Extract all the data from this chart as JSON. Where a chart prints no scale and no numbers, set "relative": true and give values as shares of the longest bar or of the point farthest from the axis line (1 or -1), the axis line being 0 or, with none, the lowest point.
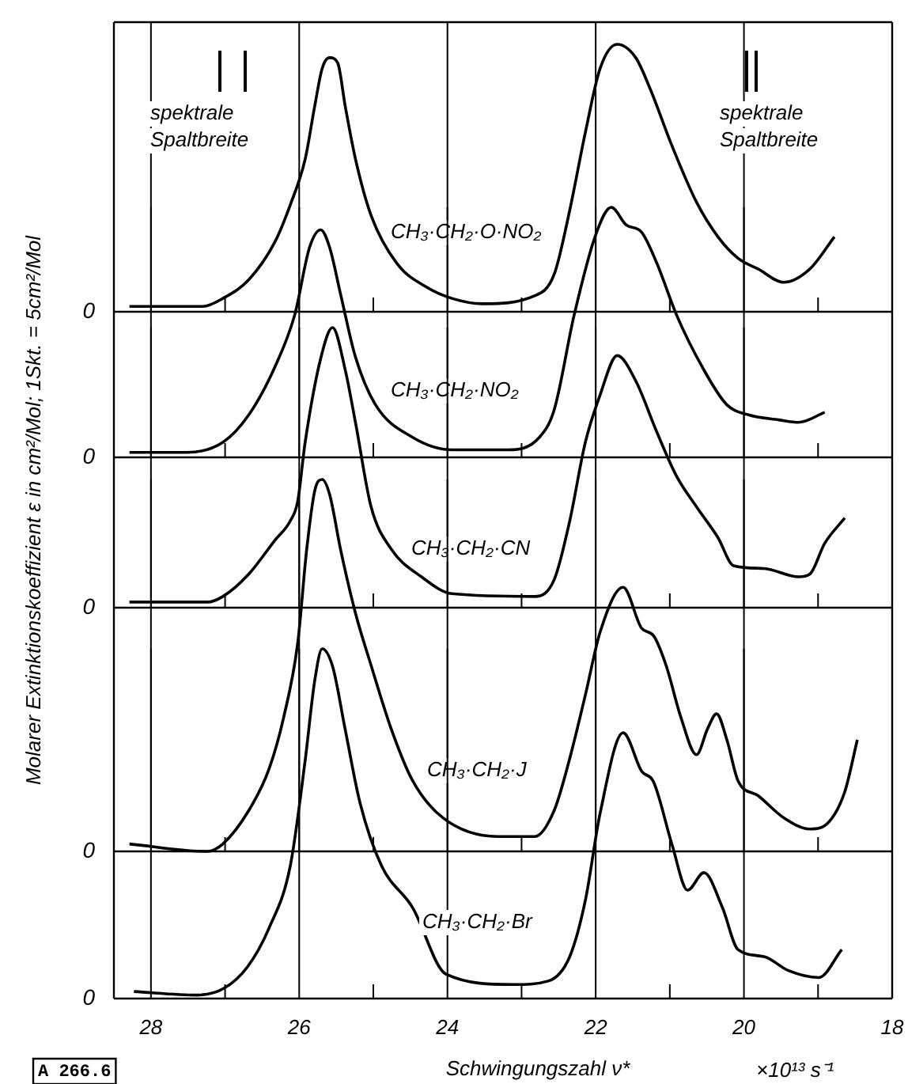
{
  "chart_data": [
    {
      "type": "line",
      "relative": true,
      "ylabel": "Molarer Extinktionskoeffizient ε in cm²/Mol; 1Skt. = 5cm²/Mol",
      "xlim": [
        28.5,
        18
      ],
      "xticks": [
        28,
        {
          "value": 27,
          "label": null
        },
        26,
        {
          "value": 25,
          "label": null
        },
        24,
        {
          "value": 23,
          "label": null
        },
        22,
        {
          "value": 21,
          "label": null
        },
        20,
        {
          "value": 19,
          "label": null
        },
        18
      ],
      "grid": "x",
      "tick_labels": false,
      "annotations": [
        "0",
        "spektrale Spaltbreite",
        "spektrale Spaltbreite"
      ],
      "x": [
        28.29,
        27.3,
        27.03,
        26.68,
        26.33,
        26.12,
        25.92,
        25.79,
        25.69,
        25.59,
        25.48,
        25.38,
        25.24,
        25.03,
        24.68,
        24.27,
        23.94,
        23.53,
        22.82,
        22.56,
        22.35,
        22.14,
        21.94,
        21.71,
        21.46,
        21.26,
        20.97,
        20.64,
        20.35,
        20.08,
        19.81,
        19.46,
        19.11,
        18.78
      ],
      "series": [
        {
          "name": "CH₃·CH₂·O·NO₂",
          "color": "#000000",
          "values": [
            0.02,
            0.02,
            0.05,
            0.12,
            0.26,
            0.4,
            0.57,
            0.77,
            0.91,
            0.95,
            0.93,
            0.77,
            0.57,
            0.36,
            0.18,
            0.09,
            0.05,
            0.03,
            0.06,
            0.14,
            0.38,
            0.67,
            0.91,
            1,
            0.95,
            0.83,
            0.62,
            0.41,
            0.28,
            0.2,
            0.16,
            0.11,
            0.16,
            0.28
          ]
        }
      ]
    },
    {
      "type": "line",
      "relative": true,
      "xlim": [
        28.5,
        18
      ],
      "xticks": [
        28,
        {
          "value": 27,
          "label": null
        },
        26,
        {
          "value": 25,
          "label": null
        },
        24,
        {
          "value": 23,
          "label": null
        },
        22,
        {
          "value": 21,
          "label": null
        },
        20,
        {
          "value": 19,
          "label": null
        },
        18
      ],
      "grid": "x",
      "tick_labels": false,
      "annotations": [
        "0"
      ],
      "x": [
        28.29,
        27.51,
        27.03,
        26.68,
        26.33,
        26.06,
        25.86,
        25.71,
        25.59,
        25.44,
        25.24,
        24.97,
        24.47,
        23.94,
        23.18,
        22.76,
        22.56,
        22.29,
        22.0,
        21.79,
        21.59,
        21.38,
        21.18,
        20.91,
        20.56,
        20.23,
        19.94,
        19.53,
        19.26,
        18.91
      ],
      "series": [
        {
          "name": "CH₃·CH₂·NO₂",
          "color": "#000000",
          "values": [
            0.02,
            0.02,
            0.06,
            0.17,
            0.36,
            0.57,
            0.84,
            0.91,
            0.84,
            0.65,
            0.4,
            0.21,
            0.08,
            0.03,
            0.03,
            0.08,
            0.19,
            0.57,
            0.89,
            1,
            0.93,
            0.9,
            0.78,
            0.57,
            0.36,
            0.21,
            0.17,
            0.15,
            0.14,
            0.18
          ]
        }
      ]
    },
    {
      "type": "line",
      "relative": true,
      "xlim": [
        28.5,
        18
      ],
      "xticks": [
        28,
        {
          "value": 27,
          "label": null
        },
        26,
        {
          "value": 25,
          "label": null
        },
        24,
        {
          "value": 23,
          "label": null
        },
        22,
        {
          "value": 21,
          "label": null
        },
        20,
        {
          "value": 19,
          "label": null
        },
        18
      ],
      "grid": "x",
      "tick_labels": false,
      "annotations": [
        "0"
      ],
      "x": [
        28.29,
        27.24,
        27.03,
        26.68,
        26.33,
        26.12,
        26.02,
        25.92,
        25.71,
        25.55,
        25.38,
        25.24,
        25.03,
        24.76,
        24.35,
        23.94,
        22.82,
        22.56,
        22.35,
        22.14,
        21.94,
        21.71,
        21.46,
        21.18,
        20.91,
        20.64,
        20.35,
        20.14,
        19.73,
        19.26,
        19.11,
        18.91,
        18.64
      ],
      "series": [
        {
          "name": "CH₃·CH₂·CN",
          "color": "#000000",
          "values": [
            0.02,
            0.02,
            0.04,
            0.12,
            0.24,
            0.31,
            0.38,
            0.59,
            0.89,
            1,
            0.85,
            0.66,
            0.36,
            0.21,
            0.11,
            0.05,
            0.04,
            0.1,
            0.31,
            0.59,
            0.76,
            0.9,
            0.81,
            0.63,
            0.47,
            0.36,
            0.25,
            0.15,
            0.14,
            0.11,
            0.12,
            0.23,
            0.32
          ]
        }
      ]
    },
    {
      "type": "line",
      "relative": true,
      "xlim": [
        28.5,
        18
      ],
      "xticks": [
        28,
        {
          "value": 27,
          "label": null
        },
        26,
        {
          "value": 25,
          "label": null
        },
        24,
        {
          "value": 23,
          "label": null
        },
        22,
        {
          "value": 21,
          "label": null
        },
        20,
        {
          "value": 19,
          "label": null
        },
        18
      ],
      "grid": "x",
      "tick_labels": false,
      "annotations": [
        "0"
      ],
      "x": [
        28.29,
        27.24,
        27.03,
        26.68,
        26.41,
        26.21,
        26.02,
        25.9,
        25.79,
        25.69,
        25.59,
        25.44,
        25.24,
        25.03,
        24.76,
        24.47,
        24.06,
        23.32,
        22.82,
        22.56,
        22.35,
        22.14,
        21.94,
        21.63,
        21.38,
        21.22,
        21.05,
        20.85,
        20.64,
        20.49,
        20.37,
        20.23,
        20.08,
        19.81,
        19.46,
        19.11,
        18.85,
        18.64,
        18.47
      ],
      "series": [
        {
          "name": "CH₃·CH₂·J",
          "color": "#000000",
          "values": [
            0.02,
            0,
            0.02,
            0.11,
            0.22,
            0.36,
            0.56,
            0.81,
            0.97,
            1,
            0.96,
            0.81,
            0.64,
            0.5,
            0.33,
            0.19,
            0.09,
            0.04,
            0.04,
            0.11,
            0.25,
            0.42,
            0.59,
            0.71,
            0.6,
            0.58,
            0.5,
            0.36,
            0.26,
            0.33,
            0.37,
            0.3,
            0.19,
            0.15,
            0.09,
            0.06,
            0.08,
            0.16,
            0.3
          ]
        }
      ]
    },
    {
      "type": "line",
      "relative": true,
      "xlabel": "Schwingungszahl ν*",
      "xlim": [
        28.5,
        18
      ],
      "xticks": [
        28,
        {
          "value": 27,
          "label": null
        },
        26,
        {
          "value": 25,
          "label": null
        },
        24,
        {
          "value": 23,
          "label": null
        },
        22,
        {
          "value": 21,
          "label": null
        },
        20,
        {
          "value": 19,
          "label": null
        },
        18
      ],
      "grid": "x",
      "tick_labels": "x",
      "annotations": [
        "0",
        "×10¹³ s⁻¹",
        "A 266.6"
      ],
      "x": [
        28.23,
        27.38,
        27.01,
        26.7,
        26.41,
        26.12,
        25.92,
        25.79,
        25.69,
        25.55,
        25.38,
        25.18,
        24.89,
        24.47,
        24.02,
        23.11,
        22.64,
        22.35,
        22.14,
        21.94,
        21.63,
        21.38,
        21.22,
        20.97,
        20.76,
        20.54,
        20.29,
        20.08,
        19.73,
        19.4,
        18.99,
        18.68
      ],
      "series": [
        {
          "name": "CH₃·CH₂·Br",
          "color": "#000000",
          "values": [
            0.02,
            0.01,
            0.03,
            0.09,
            0.2,
            0.38,
            0.68,
            0.91,
            1,
            0.95,
            0.77,
            0.56,
            0.38,
            0.26,
            0.07,
            0.04,
            0.05,
            0.12,
            0.28,
            0.53,
            0.76,
            0.65,
            0.62,
            0.44,
            0.31,
            0.36,
            0.26,
            0.14,
            0.12,
            0.08,
            0.06,
            0.14
          ]
        }
      ]
    }
  ]
}
